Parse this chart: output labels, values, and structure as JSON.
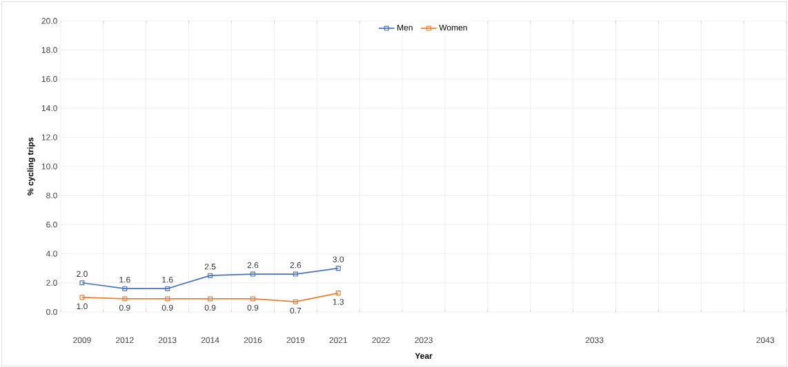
{
  "chart_data": {
    "type": "line",
    "xlabel": "Year",
    "ylabel": "% cycling trips",
    "categories": [
      "2009",
      "2012",
      "2013",
      "2014",
      "2016",
      "2019",
      "2021",
      "2022",
      "2023",
      null,
      null,
      null,
      "2033",
      null,
      null,
      null,
      "2043"
    ],
    "series": [
      {
        "name": "Men",
        "color": "#4472c4",
        "values": [
          2.0,
          1.6,
          1.6,
          2.5,
          2.6,
          2.6,
          3.0,
          null,
          null,
          null,
          null,
          null,
          null,
          null,
          null,
          null,
          null
        ],
        "value_labels": [
          "2.0",
          "1.6",
          "1.6",
          "2.5",
          "2.6",
          "2.6",
          "3.0",
          null,
          null,
          null,
          null,
          null,
          null,
          null,
          null,
          null,
          null
        ]
      },
      {
        "name": "Women",
        "color": "#ed7d31",
        "values": [
          1.0,
          0.9,
          0.9,
          0.9,
          0.9,
          0.7,
          1.3,
          null,
          null,
          null,
          null,
          null,
          null,
          null,
          null,
          null,
          null
        ],
        "value_labels": [
          "1.0",
          "0.9",
          "0.9",
          "0.9",
          "0.9",
          "0.7",
          "1.3",
          null,
          null,
          null,
          null,
          null,
          null,
          null,
          null,
          null,
          null
        ]
      }
    ],
    "ylim": [
      0,
      20
    ],
    "yticks": [
      {
        "value": 0,
        "label": "0.0"
      },
      {
        "value": 2,
        "label": "2.0"
      },
      {
        "value": 4,
        "label": "4.0"
      },
      {
        "value": 6,
        "label": "6.0"
      },
      {
        "value": 8,
        "label": "8.0"
      },
      {
        "value": 10,
        "label": "10.0"
      },
      {
        "value": 12,
        "label": "12.0"
      },
      {
        "value": 14,
        "label": "14.0"
      },
      {
        "value": 16,
        "label": "16.0"
      },
      {
        "value": 18,
        "label": "18.0"
      },
      {
        "value": 20,
        "label": "20.0"
      }
    ],
    "grid": true,
    "legend": "top",
    "marker": "square",
    "line_style": "solid"
  }
}
